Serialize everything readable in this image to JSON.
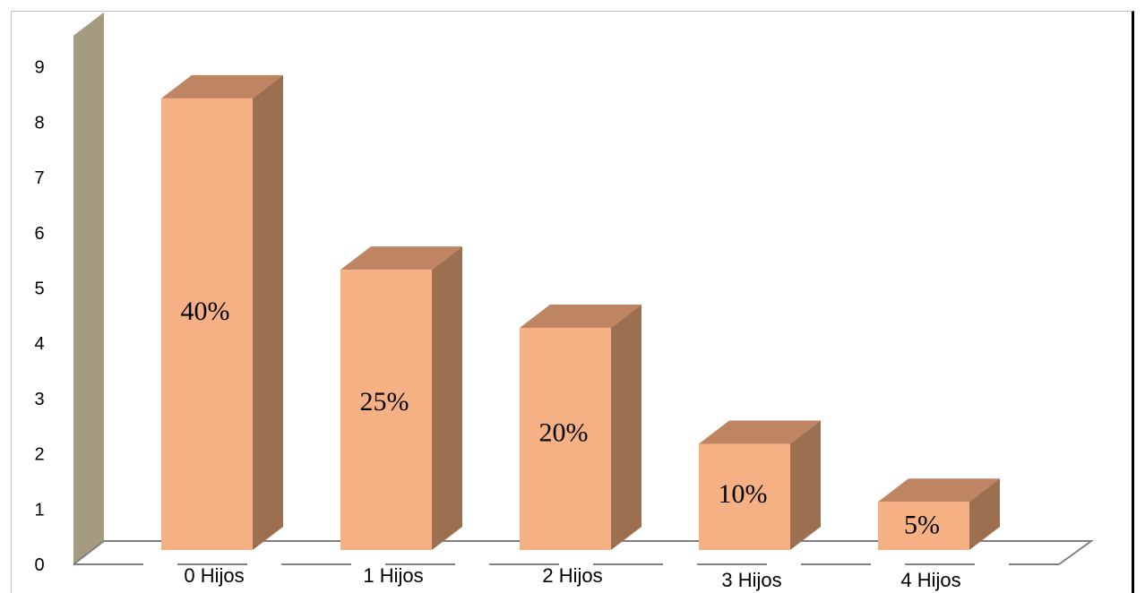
{
  "colors": {
    "bar_front": "#f5b183",
    "bar_top": "#bf8462",
    "bar_side": "#9c6f50",
    "wall": "#a59b80",
    "floor_line": "#7f7f7f"
  },
  "chart_data": {
    "type": "bar",
    "title": "",
    "xlabel": "",
    "ylabel": "",
    "categories": [
      "0 Hijos",
      "1 Hijos",
      "2 Hijos",
      "3 Hijos",
      "4 Hijos"
    ],
    "values": [
      8.3,
      5.2,
      4.15,
      2.05,
      1.0
    ],
    "data_labels": [
      "40%",
      "25%",
      "20%",
      "10%",
      "5%"
    ],
    "ylim": [
      0,
      9
    ],
    "yticks": [
      "0",
      "1",
      "2",
      "3",
      "4",
      "5",
      "6",
      "7",
      "8",
      "9"
    ],
    "grid": false,
    "legend": "none",
    "style": "3d-column"
  }
}
